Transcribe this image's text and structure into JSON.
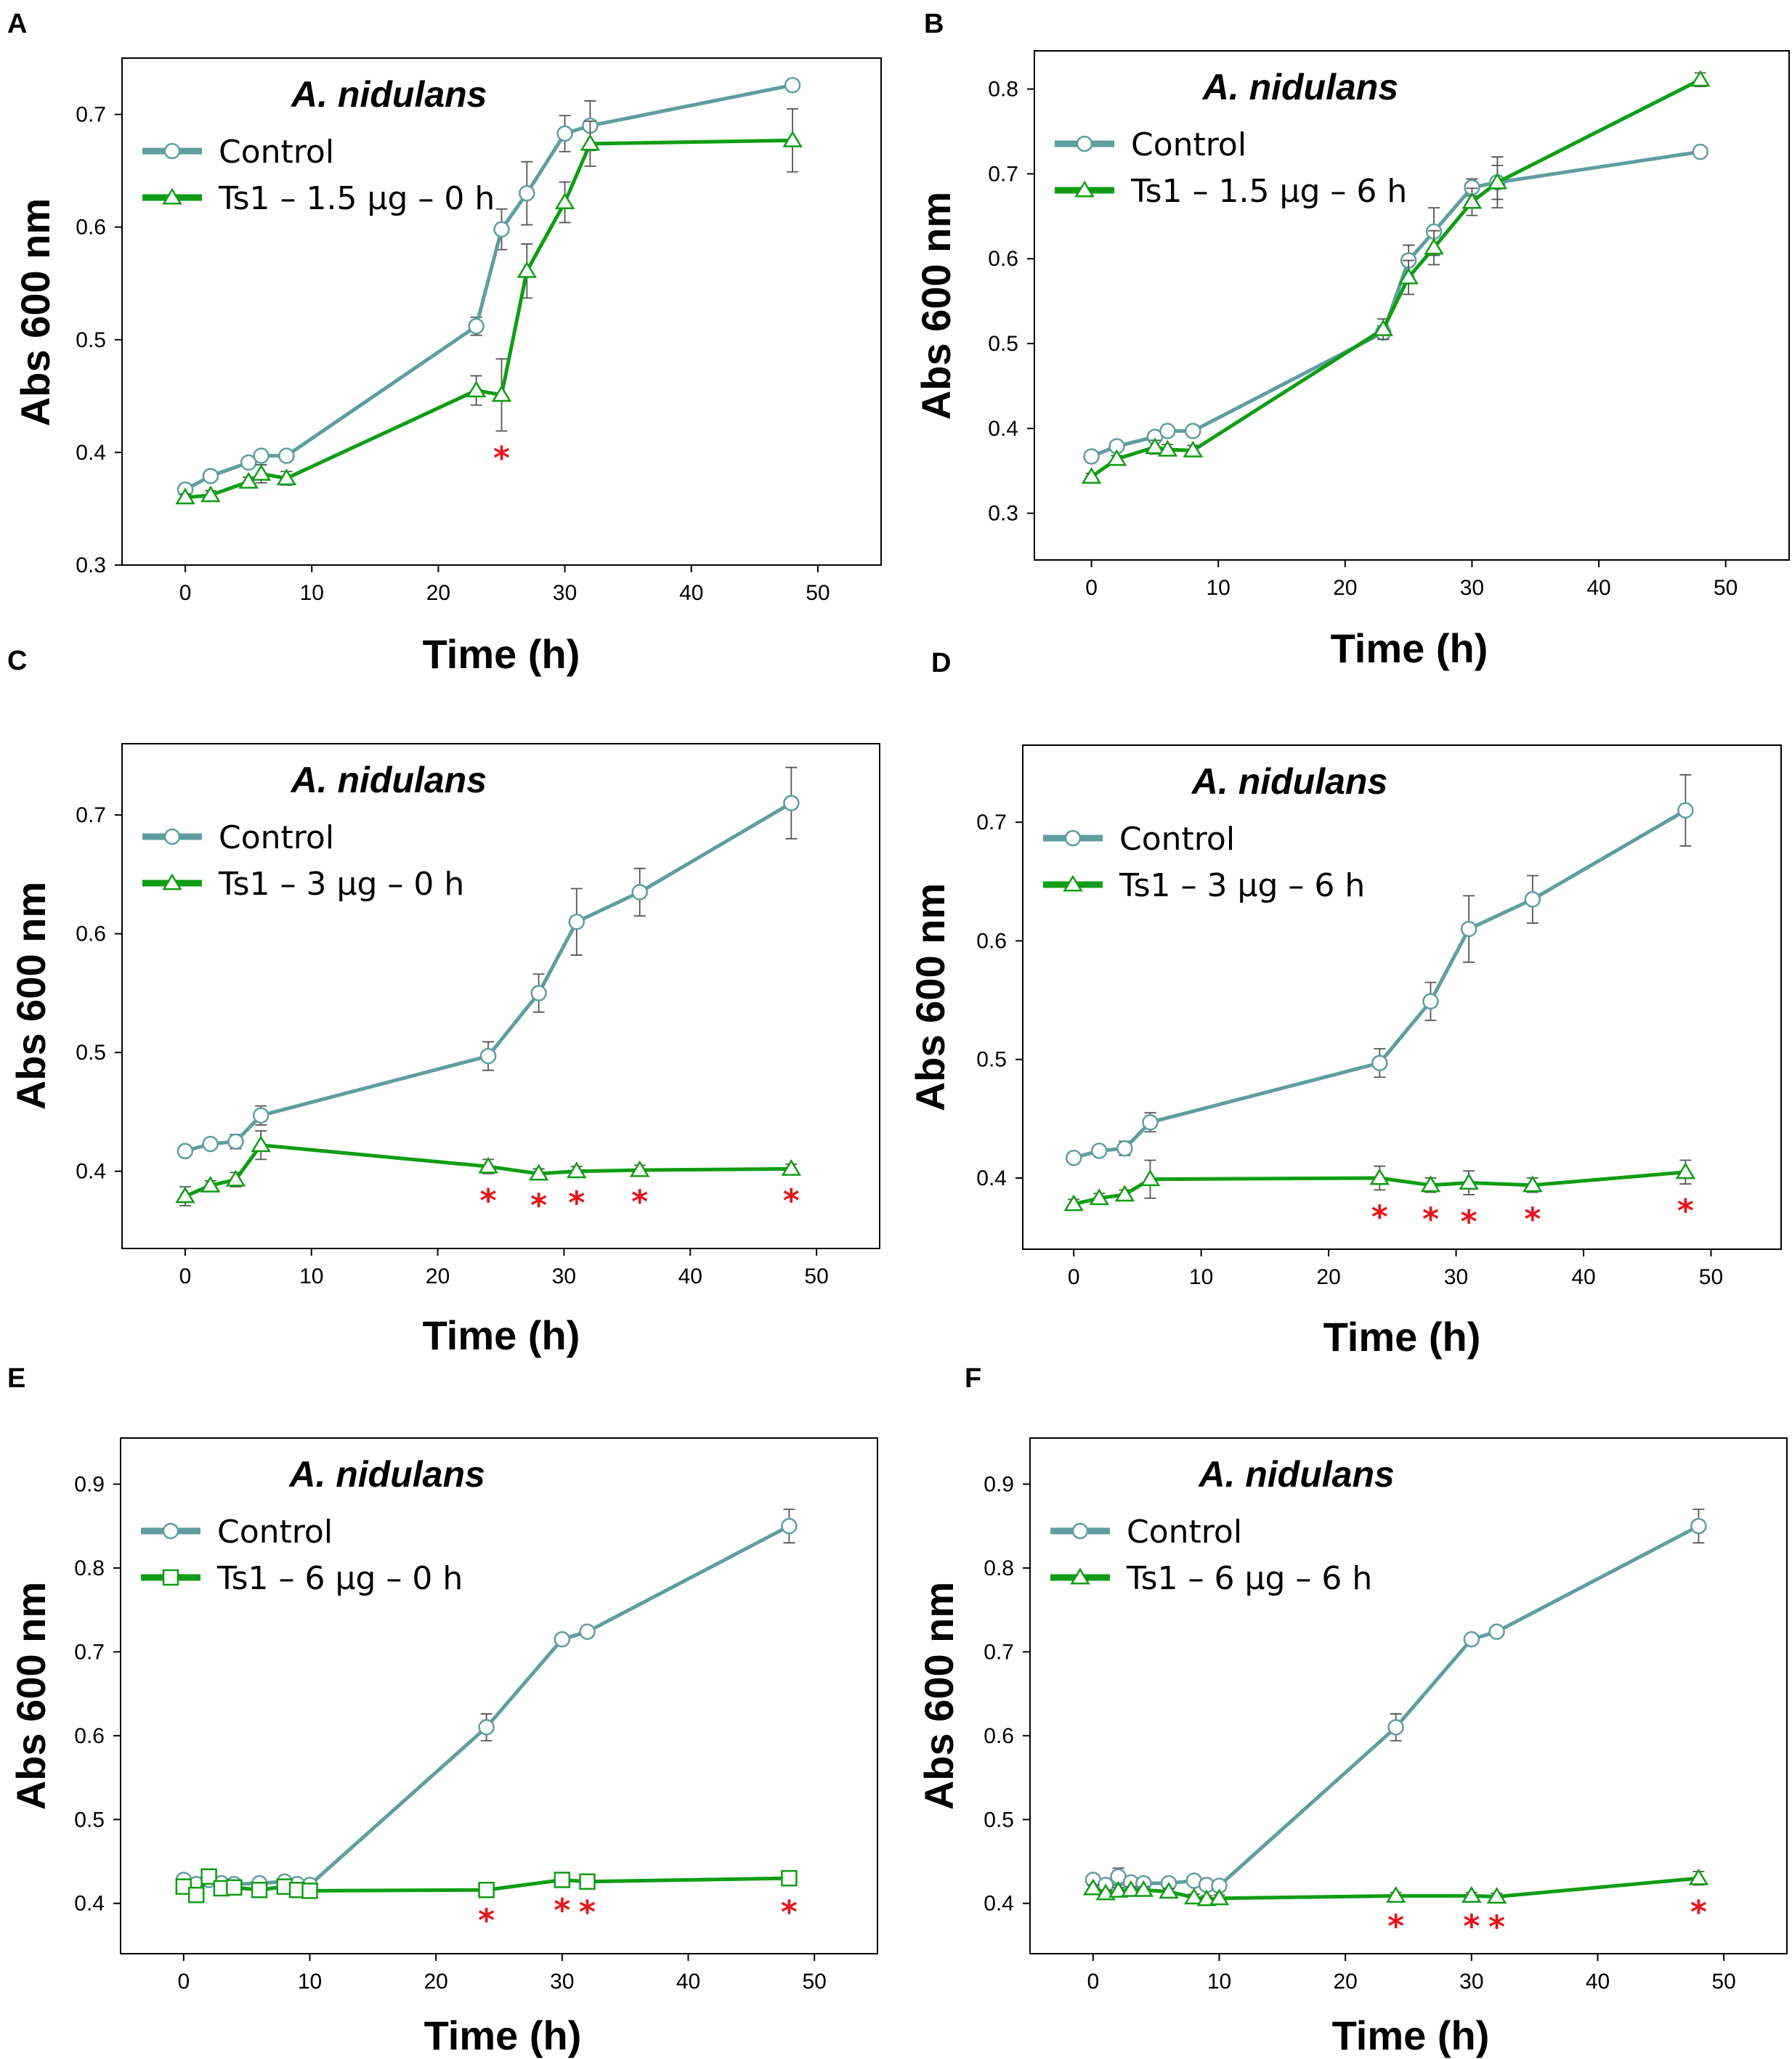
{
  "figure": {
    "colors": {
      "control": "#5f9ea0",
      "treatment": "#0f9d14",
      "errorbar": "#555555",
      "significance": "#e8141b"
    }
  },
  "chart_data": [
    {
      "panel": "A",
      "type": "line",
      "title": "A. nidulans",
      "xlabel": "Time (h)",
      "ylabel": "Abs 600 nm",
      "xlim": [
        -5,
        55
      ],
      "ylim": [
        0.3,
        0.75
      ],
      "xticks": [
        0,
        10,
        20,
        30,
        40,
        50
      ],
      "yticks": [
        0.3,
        0.4,
        0.5,
        0.6,
        0.7
      ],
      "legend_position": "top-left",
      "grid": false,
      "series": [
        {
          "name": "Control",
          "marker": "circle",
          "x": [
            0,
            2,
            5,
            6,
            8,
            23,
            25,
            27,
            30,
            32,
            48
          ],
          "y": [
            0.367,
            0.379,
            0.391,
            0.397,
            0.397,
            0.512,
            0.598,
            0.63,
            0.683,
            0.69,
            0.726
          ],
          "err": [
            0.003,
            0.004,
            0.003,
            0.004,
            0.003,
            0.008,
            0.018,
            0.028,
            0.016,
            0.022,
            0
          ]
        },
        {
          "name": "Ts1 – 1.5 µg – 0 h",
          "marker": "triangle",
          "x": [
            0,
            2,
            5,
            6,
            8,
            23,
            25,
            27,
            30,
            32,
            48
          ],
          "y": [
            0.36,
            0.362,
            0.374,
            0.381,
            0.377,
            0.455,
            0.451,
            0.561,
            0.622,
            0.674,
            0.677
          ],
          "err": [
            0.003,
            0.004,
            0.004,
            0.008,
            0.006,
            0.013,
            0.032,
            0.024,
            0.018,
            0.02,
            0.028
          ]
        }
      ],
      "significance": [
        {
          "x": 25,
          "label": "*"
        }
      ]
    },
    {
      "panel": "B",
      "type": "line",
      "title": "A. nidulans",
      "xlabel": "Time (h)",
      "ylabel": "Abs 600 nm",
      "xlim": [
        -4.5,
        55
      ],
      "ylim": [
        0.245,
        0.845
      ],
      "xticks": [
        0,
        10,
        20,
        30,
        40,
        50
      ],
      "yticks": [
        0.3,
        0.4,
        0.5,
        0.6,
        0.7,
        0.8
      ],
      "legend_position": "top-left",
      "grid": false,
      "series": [
        {
          "name": "Control",
          "marker": "circle",
          "x": [
            0,
            2,
            5,
            6,
            8,
            23,
            25,
            27,
            30,
            32,
            48
          ],
          "y": [
            0.367,
            0.379,
            0.39,
            0.397,
            0.397,
            0.513,
            0.598,
            0.632,
            0.684,
            0.69,
            0.726
          ],
          "err": [
            0.003,
            0.004,
            0.004,
            0.004,
            0.004,
            0.008,
            0.018,
            0.028,
            0.01,
            0.03,
            0
          ]
        },
        {
          "name": "Ts1 – 1.5 µg – 6 h",
          "marker": "triangle",
          "x": [
            0,
            2,
            5,
            6,
            8,
            23,
            25,
            27,
            30,
            32,
            48
          ],
          "y": [
            0.343,
            0.364,
            0.378,
            0.375,
            0.374,
            0.517,
            0.578,
            0.613,
            0.667,
            0.69,
            0.811
          ],
          "err": [
            0.004,
            0.004,
            0.008,
            0.006,
            0.006,
            0.012,
            0.02,
            0.02,
            0.016,
            0.02,
            0.008
          ]
        }
      ],
      "significance": []
    },
    {
      "panel": "C",
      "type": "line",
      "title": "A. nidulans",
      "xlabel": "Time (h)",
      "ylabel": "Abs 600 nm",
      "xlim": [
        -5,
        55
      ],
      "ylim": [
        0.335,
        0.76
      ],
      "xticks": [
        0,
        10,
        20,
        30,
        40,
        50
      ],
      "yticks": [
        0.4,
        0.5,
        0.6,
        0.7
      ],
      "legend_position": "top-left",
      "grid": false,
      "series": [
        {
          "name": "Control",
          "marker": "circle",
          "x": [
            0,
            2,
            4,
            6,
            24,
            28,
            31,
            36,
            48
          ],
          "y": [
            0.417,
            0.423,
            0.425,
            0.447,
            0.497,
            0.55,
            0.61,
            0.635,
            0.71
          ],
          "err": [
            0.004,
            0.004,
            0.006,
            0.008,
            0.012,
            0.016,
            0.028,
            0.02,
            0.03
          ]
        },
        {
          "name": "Ts1 – 3 µg – 0 h",
          "marker": "triangle",
          "x": [
            0,
            2,
            4,
            6,
            24,
            28,
            31,
            36,
            48
          ],
          "y": [
            0.379,
            0.388,
            0.393,
            0.422,
            0.404,
            0.398,
            0.4,
            0.401,
            0.402
          ],
          "err": [
            0.008,
            0.004,
            0.006,
            0.012,
            0.006,
            0.004,
            0.004,
            0.004,
            0.004
          ]
        }
      ],
      "significance": [
        {
          "x": 24,
          "label": "*"
        },
        {
          "x": 28,
          "label": "*"
        },
        {
          "x": 31,
          "label": "*"
        },
        {
          "x": 36,
          "label": "*"
        },
        {
          "x": 48,
          "label": "*"
        }
      ]
    },
    {
      "panel": "D",
      "type": "line",
      "title": "A. nidulans",
      "xlabel": "Time (h)",
      "ylabel": "Abs 600 nm",
      "xlim": [
        -4,
        55.5
      ],
      "ylim": [
        0.34,
        0.765
      ],
      "xticks": [
        0,
        10,
        20,
        30,
        40,
        50
      ],
      "yticks": [
        0.4,
        0.5,
        0.6,
        0.7
      ],
      "legend_position": "top-left",
      "grid": false,
      "series": [
        {
          "name": "Control",
          "marker": "circle",
          "x": [
            0,
            2,
            4,
            6,
            24,
            28,
            31,
            36,
            48
          ],
          "y": [
            0.417,
            0.423,
            0.425,
            0.447,
            0.497,
            0.549,
            0.61,
            0.635,
            0.71
          ],
          "err": [
            0.004,
            0.004,
            0.006,
            0.008,
            0.012,
            0.016,
            0.028,
            0.02,
            0.03
          ]
        },
        {
          "name": "Ts1 – 3 µg – 6 h",
          "marker": "triangle",
          "x": [
            0,
            2,
            4,
            6,
            24,
            28,
            31,
            36,
            48
          ],
          "y": [
            0.378,
            0.383,
            0.386,
            0.399,
            0.4,
            0.394,
            0.396,
            0.394,
            0.405
          ],
          "err": [
            0.004,
            0.004,
            0.004,
            0.016,
            0.01,
            0.006,
            0.01,
            0.006,
            0.01
          ]
        }
      ],
      "significance": [
        {
          "x": 24,
          "label": "*"
        },
        {
          "x": 28,
          "label": "*"
        },
        {
          "x": 31,
          "label": "*"
        },
        {
          "x": 36,
          "label": "*"
        },
        {
          "x": 48,
          "label": "*"
        }
      ]
    },
    {
      "panel": "E",
      "type": "line",
      "title": "A. nidulans",
      "xlabel": "Time (h)",
      "ylabel": "Abs 600 nm",
      "xlim": [
        -5,
        55
      ],
      "ylim": [
        0.34,
        0.955
      ],
      "xticks": [
        0,
        10,
        20,
        30,
        40,
        50
      ],
      "yticks": [
        0.4,
        0.5,
        0.6,
        0.7,
        0.8,
        0.9
      ],
      "legend_position": "top-left",
      "grid": false,
      "series": [
        {
          "name": "Control",
          "marker": "circle",
          "x": [
            0,
            1,
            2,
            3,
            4,
            6,
            8,
            9,
            10,
            24,
            30,
            32,
            48
          ],
          "y": [
            0.428,
            0.423,
            0.428,
            0.424,
            0.423,
            0.424,
            0.426,
            0.423,
            0.422,
            0.61,
            0.715,
            0.724,
            0.85
          ],
          "err": [
            0.004,
            0.004,
            0.006,
            0.004,
            0.004,
            0.004,
            0.004,
            0.004,
            0.004,
            0.016,
            0.004,
            0.006,
            0.02
          ]
        },
        {
          "name": "Ts1 – 6 µg – 0 h",
          "marker": "square",
          "x": [
            0,
            1,
            2,
            3,
            4,
            6,
            8,
            9,
            10,
            24,
            30,
            32,
            48
          ],
          "y": [
            0.42,
            0.41,
            0.432,
            0.418,
            0.419,
            0.416,
            0.42,
            0.416,
            0.415,
            0.416,
            0.428,
            0.426,
            0.43
          ],
          "err": [
            0.006,
            0.006,
            0.006,
            0.004,
            0.004,
            0.004,
            0.004,
            0.004,
            0.004,
            0.004,
            0.004,
            0.004,
            0.008
          ]
        }
      ],
      "significance": [
        {
          "x": 24,
          "label": "*"
        },
        {
          "x": 30,
          "label": "*"
        },
        {
          "x": 32,
          "label": "*"
        },
        {
          "x": 48,
          "label": "*"
        }
      ]
    },
    {
      "panel": "F",
      "type": "line",
      "title": "A. nidulans",
      "xlabel": "Time (h)",
      "ylabel": "Abs 600 nm",
      "xlim": [
        -5,
        55
      ],
      "ylim": [
        0.34,
        0.955
      ],
      "xticks": [
        0,
        10,
        20,
        30,
        40,
        50
      ],
      "yticks": [
        0.4,
        0.5,
        0.6,
        0.7,
        0.8,
        0.9
      ],
      "legend_position": "top-left",
      "grid": false,
      "series": [
        {
          "name": "Control",
          "marker": "circle",
          "x": [
            0,
            1,
            2,
            3,
            4,
            6,
            8,
            9,
            10,
            24,
            30,
            32,
            48
          ],
          "y": [
            0.428,
            0.422,
            0.432,
            0.425,
            0.424,
            0.424,
            0.427,
            0.422,
            0.421,
            0.61,
            0.715,
            0.724,
            0.85
          ],
          "err": [
            0.004,
            0.004,
            0.01,
            0.004,
            0.004,
            0.004,
            0.004,
            0.004,
            0.004,
            0.016,
            0.004,
            0.006,
            0.02
          ]
        },
        {
          "name": "Ts1 – 6 µg – 6 h",
          "marker": "triangle",
          "x": [
            0,
            1,
            2,
            3,
            4,
            6,
            8,
            9,
            10,
            24,
            30,
            32,
            48
          ],
          "y": [
            0.418,
            0.412,
            0.415,
            0.416,
            0.416,
            0.414,
            0.407,
            0.405,
            0.406,
            0.409,
            0.409,
            0.408,
            0.43
          ],
          "err": [
            0.004,
            0.004,
            0.004,
            0.004,
            0.004,
            0.004,
            0.004,
            0.004,
            0.004,
            0.004,
            0.004,
            0.004,
            0.008
          ]
        }
      ],
      "significance": [
        {
          "x": 24,
          "label": "*"
        },
        {
          "x": 30,
          "label": "*"
        },
        {
          "x": 32,
          "label": "*"
        },
        {
          "x": 48,
          "label": "*"
        }
      ]
    }
  ]
}
